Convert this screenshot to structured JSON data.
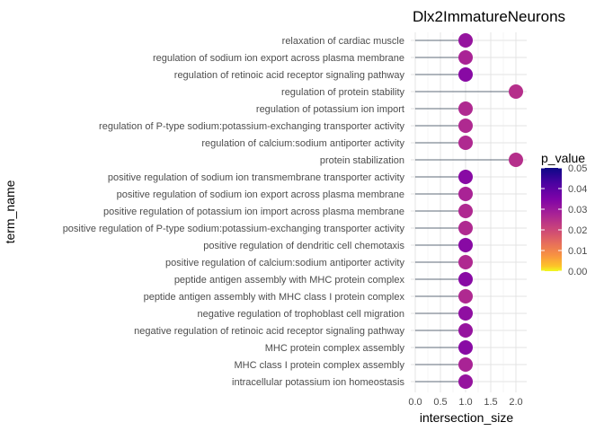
{
  "chart_data": {
    "type": "scatter",
    "subtype": "lollipop",
    "title": "Dlx2ImmatureNeurons",
    "xlabel": "intersection_size",
    "ylabel": "term_name",
    "xlim": [
      0,
      2.15
    ],
    "xticks": [
      0.0,
      0.5,
      1.0,
      1.5,
      2.0
    ],
    "xtick_labels": [
      "0.0",
      "0.5",
      "1.0",
      "1.5",
      "2.0"
    ],
    "grid": true,
    "legend": {
      "title": "p_value",
      "placement": "right",
      "range": [
        0.0,
        0.05
      ],
      "tick_labels": [
        "0.05",
        "0.04",
        "0.03",
        "0.02",
        "0.01",
        "0.00"
      ],
      "tick_values": [
        0.05,
        0.04,
        0.03,
        0.02,
        0.01,
        0.0
      ]
    },
    "colorscale": "plasma",
    "terms": [
      "relaxation of cardiac muscle",
      "regulation of sodium ion export across plasma membrane",
      "regulation of retinoic acid receptor signaling pathway",
      "regulation of protein stability",
      "regulation of potassium ion import",
      "regulation of P-type sodium:potassium-exchanging transporter activity",
      "regulation of calcium:sodium antiporter activity",
      "protein stabilization",
      "positive regulation of sodium ion transmembrane transporter activity",
      "positive regulation of sodium ion export across plasma membrane",
      "positive regulation of potassium ion import across plasma membrane",
      "positive regulation of P-type sodium:potassium-exchanging transporter activity",
      "positive regulation of dendritic cell chemotaxis",
      "positive regulation of calcium:sodium antiporter activity",
      "peptide antigen assembly with MHC protein complex",
      "peptide antigen assembly with MHC class I protein complex",
      "negative regulation of trophoblast cell migration",
      "negative regulation of retinoic acid receptor signaling pathway",
      "MHC protein complex assembly",
      "MHC class I protein complex assembly",
      "intracellular potassium ion homeostasis"
    ],
    "intersection_size": [
      1,
      1,
      1,
      2,
      1,
      1,
      1,
      2,
      1,
      1,
      1,
      1,
      1,
      1,
      1,
      1,
      1,
      1,
      1,
      1,
      1
    ],
    "p_value": [
      0.034,
      0.031,
      0.036,
      0.029,
      0.03,
      0.03,
      0.03,
      0.029,
      0.036,
      0.031,
      0.03,
      0.03,
      0.036,
      0.03,
      0.036,
      0.03,
      0.035,
      0.034,
      0.036,
      0.031,
      0.034
    ]
  }
}
